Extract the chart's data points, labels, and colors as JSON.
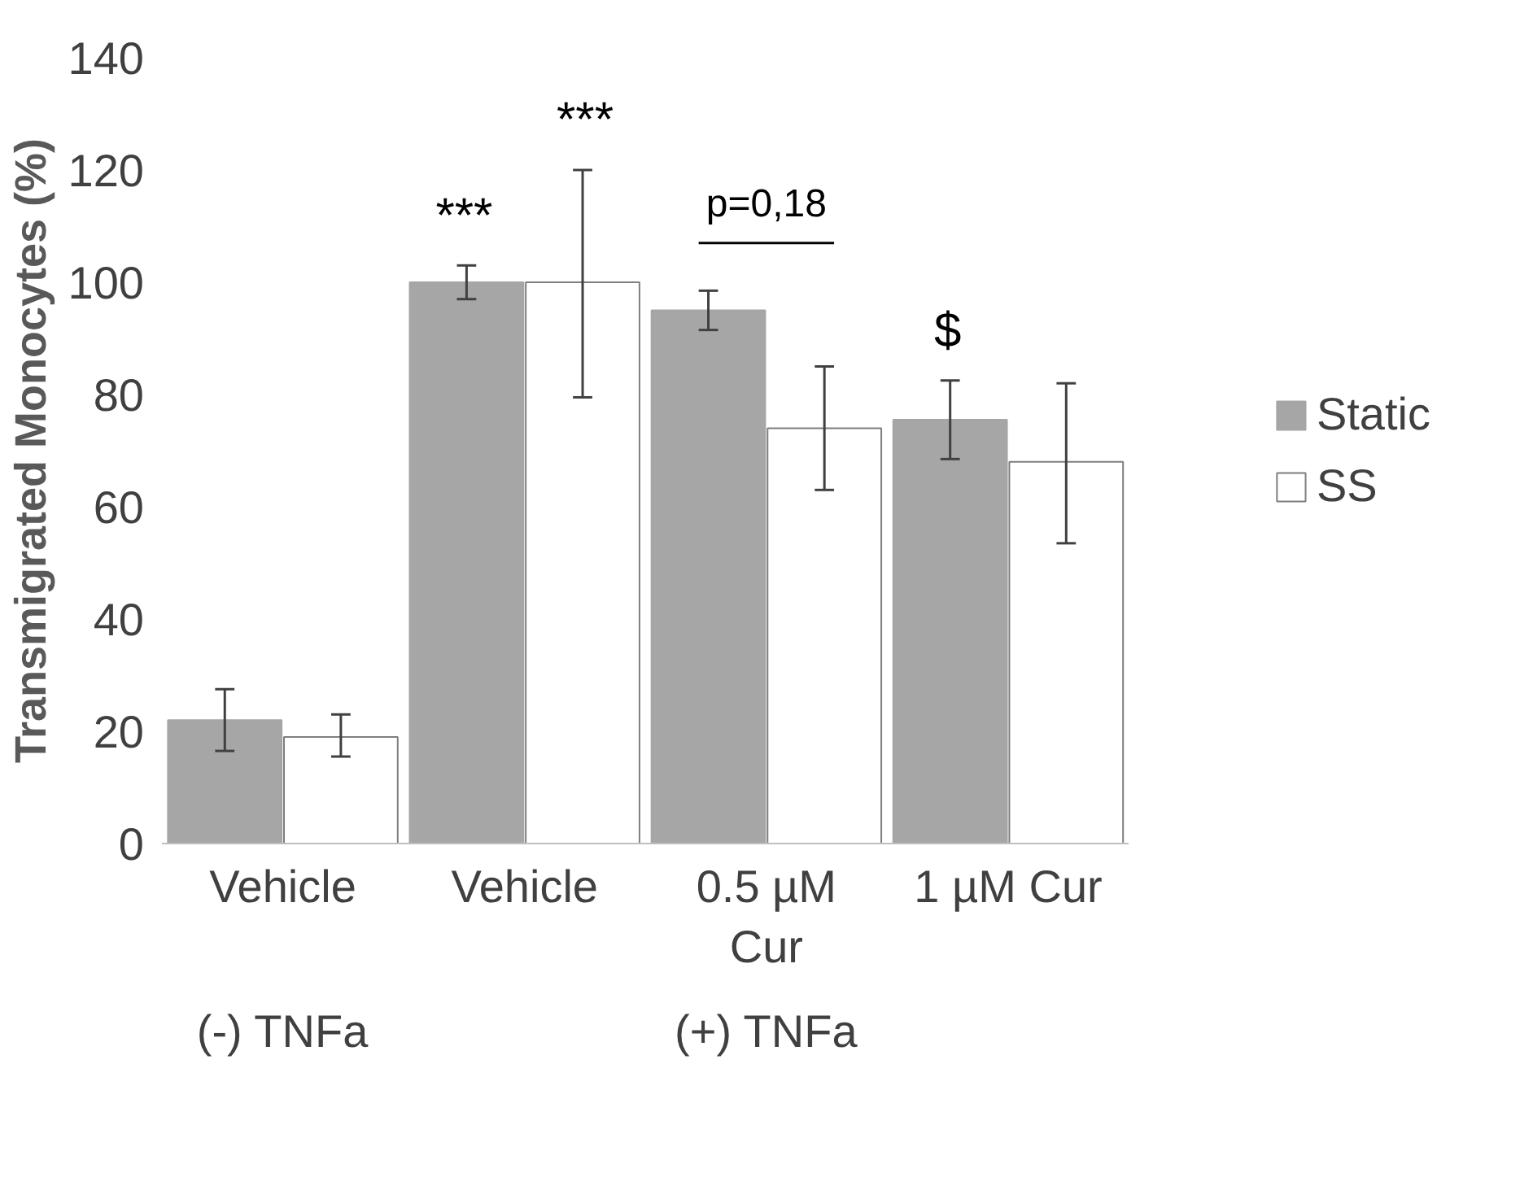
{
  "chart_data": {
    "type": "bar",
    "ylabel": "Transmigrated Monocytes (%)",
    "categories": [
      "Vehicle",
      "Vehicle",
      "0.5 µM Cur",
      "1 µM Cur"
    ],
    "series": [
      {
        "name": "Static",
        "color": "#a6a6a6",
        "values": [
          22,
          100,
          95,
          75.5
        ],
        "errors": [
          [
            16.5,
            27.5
          ],
          [
            97,
            103
          ],
          [
            91.5,
            98.5
          ],
          [
            68.5,
            82.5
          ]
        ]
      },
      {
        "name": "SS",
        "color": "#ffffff",
        "values": [
          19,
          100,
          74,
          68
        ],
        "errors": [
          [
            15.5,
            23
          ],
          [
            79.5,
            120
          ],
          [
            63,
            85
          ],
          [
            53.5,
            82
          ]
        ]
      }
    ],
    "ylim": [
      0,
      140
    ],
    "yticks": [
      0,
      20,
      40,
      60,
      80,
      100,
      120,
      140
    ],
    "grid": false,
    "legend": "right",
    "annotations": [
      {
        "text": "***",
        "y": 103
      },
      {
        "text": "***",
        "y": 120
      },
      "p=0,18",
      {
        "text": "$",
        "y": 82.5
      },
      "(-) TNFa",
      "(+) TNFa"
    ]
  }
}
